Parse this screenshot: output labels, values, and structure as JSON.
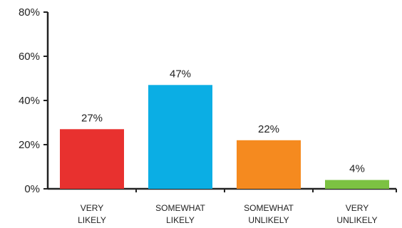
{
  "chart_data": {
    "type": "bar",
    "title": "",
    "xlabel": "",
    "ylabel": "",
    "categories": [
      [
        "VERY",
        "LIKELY"
      ],
      [
        "SOMEWHAT",
        "LIKELY"
      ],
      [
        "SOMEWHAT",
        "UNLIKELY"
      ],
      [
        "VERY",
        "UNLIKELY"
      ]
    ],
    "values": [
      27,
      47,
      22,
      4
    ],
    "data_labels": [
      "27%",
      "47%",
      "22%",
      "4%"
    ],
    "colors": [
      "#e8312f",
      "#0baee4",
      "#f58a1f",
      "#7cc242"
    ],
    "ylim": [
      0,
      80
    ],
    "yticks": [
      0,
      20,
      40,
      60,
      80
    ],
    "ytick_labels": [
      "0%",
      "20%",
      "40%",
      "60%",
      "80%"
    ],
    "grid": false,
    "legend": "none"
  }
}
